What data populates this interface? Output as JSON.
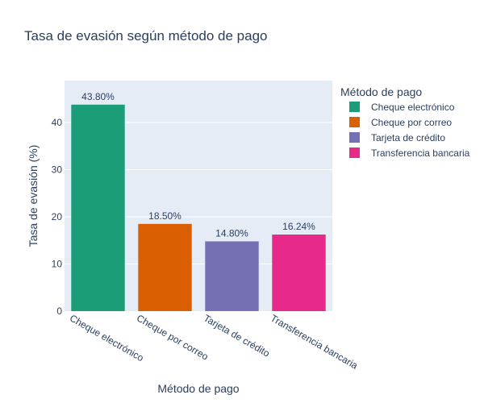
{
  "chart_data": {
    "type": "bar",
    "title": "Tasa de evasión según método de pago",
    "xlabel": "Método de pago",
    "ylabel": "Tasa de evasión (%)",
    "categories": [
      "Cheque electrónico",
      "Cheque por correo",
      "Tarjeta de crédito",
      "Transferencia bancaria"
    ],
    "values": [
      43.8,
      18.5,
      14.8,
      16.24
    ],
    "data_labels": [
      "43.80%",
      "18.50%",
      "14.80%",
      "16.24%"
    ],
    "colors": [
      "#1b9e77",
      "#d95f02",
      "#7570b3",
      "#e7298a"
    ],
    "ylim": [
      0,
      48.9
    ],
    "yticks": [
      0,
      10,
      20,
      30,
      40
    ],
    "grid": true,
    "legend": {
      "title": "Método de pago",
      "position": "right",
      "entries": [
        "Cheque electrónico",
        "Cheque por correo",
        "Tarjeta de crédito",
        "Transferencia bancaria"
      ]
    }
  }
}
